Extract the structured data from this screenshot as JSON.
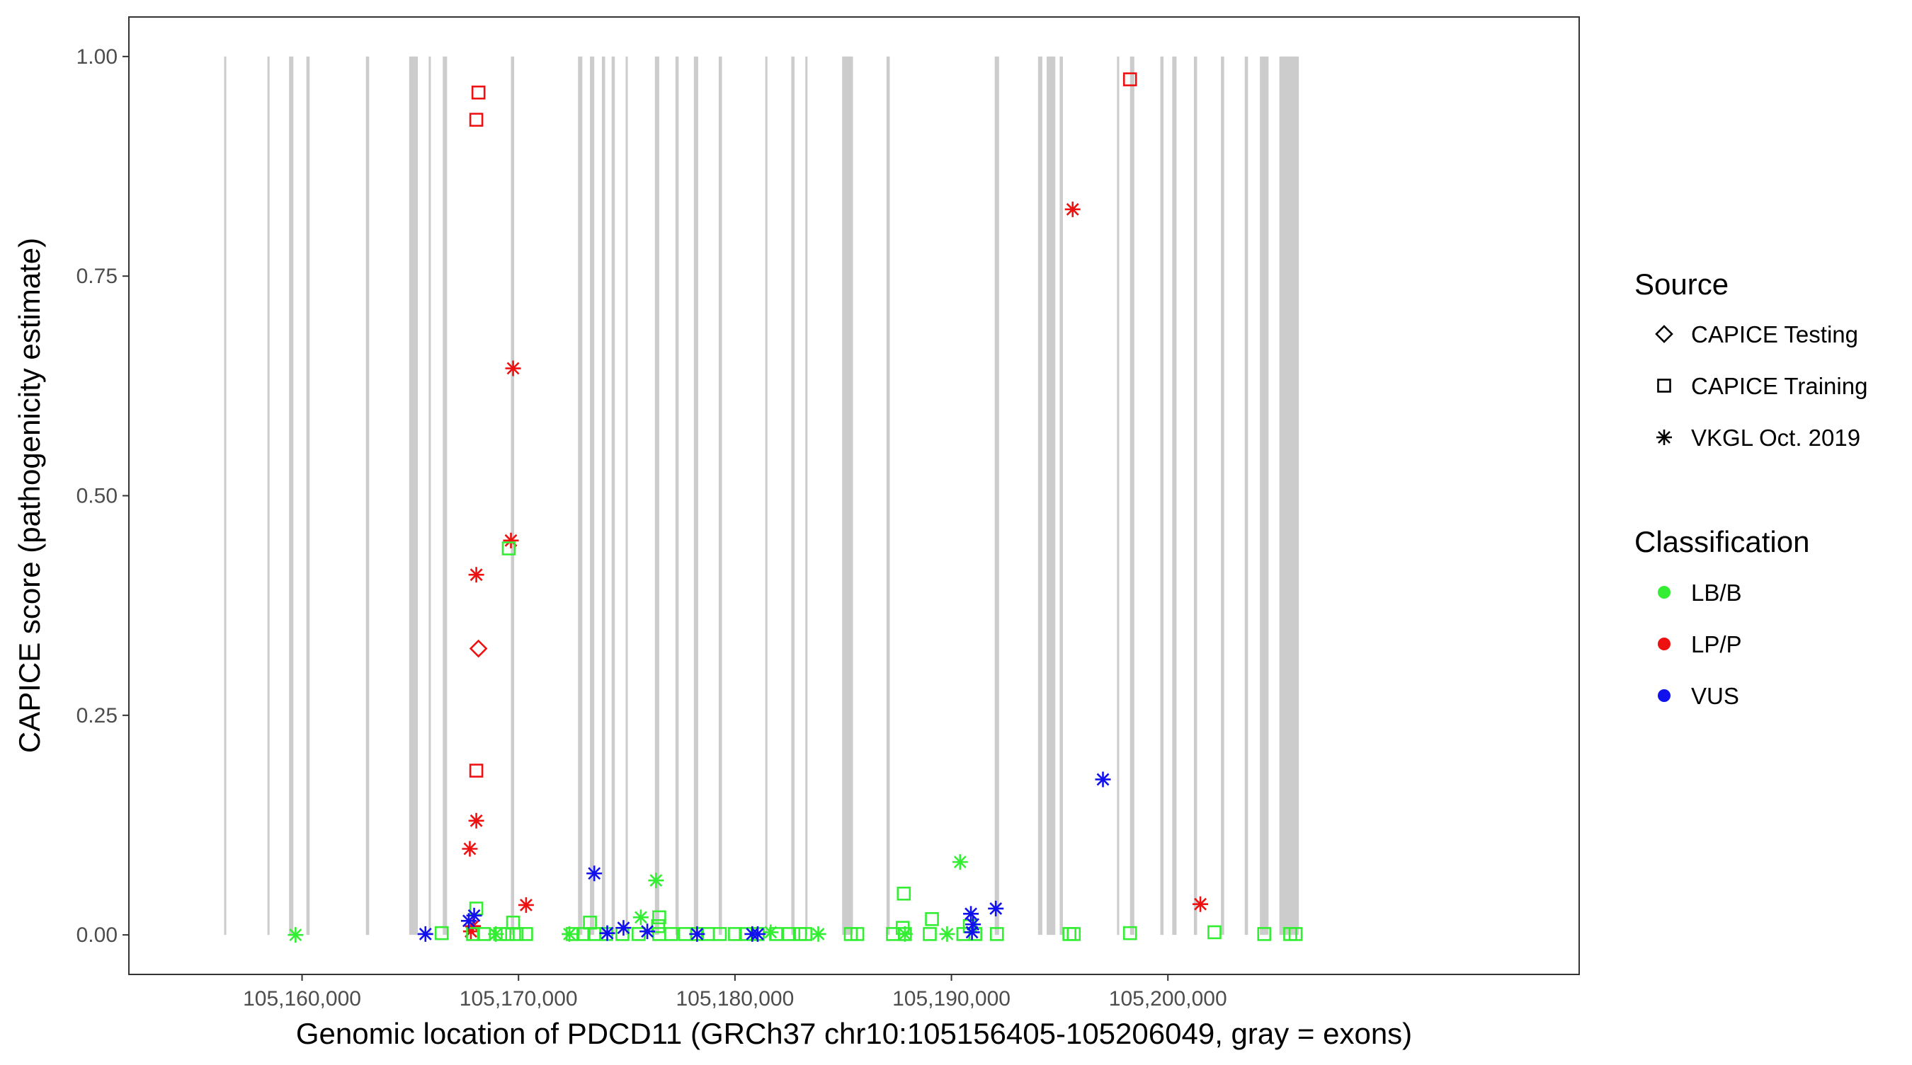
{
  "chart_data": {
    "type": "scatter",
    "xlabel": "Genomic location of PDCD11 (GRCh37 chr10:105156405-105206049, gray = exons)",
    "ylabel": "CAPICE score (pathogenicity estimate)",
    "xlim": [
      105152000,
      105219000
    ],
    "ylim": [
      -0.045,
      1.045
    ],
    "x_ticks": [
      105160000,
      105170000,
      105180000,
      105190000,
      105200000
    ],
    "x_tick_labels": [
      "105,160,000",
      "105,170,000",
      "105,180,000",
      "105,190,000",
      "105,200,000"
    ],
    "y_ticks": [
      0,
      0.25,
      0.5,
      0.75,
      1.0
    ],
    "y_tick_labels": [
      "0.00",
      "0.25",
      "0.50",
      "0.75",
      "1.00"
    ],
    "grid": false,
    "exon_color": "#cccccc",
    "exons": [
      [
        105156400,
        105156500
      ],
      [
        105158400,
        105158500
      ],
      [
        105159400,
        105159600
      ],
      [
        105160200,
        105160350
      ],
      [
        105162950,
        105163100
      ],
      [
        105164950,
        105165350
      ],
      [
        105165850,
        105165950
      ],
      [
        105166500,
        105166700
      ],
      [
        105169650,
        105169800
      ],
      [
        105172750,
        105172950
      ],
      [
        105173300,
        105173500
      ],
      [
        105173850,
        105174000
      ],
      [
        105174300,
        105174450
      ],
      [
        105174950,
        105175050
      ],
      [
        105176300,
        105176500
      ],
      [
        105177250,
        105177400
      ],
      [
        105178100,
        105178300
      ],
      [
        105179250,
        105179400
      ],
      [
        105181400,
        105181500
      ],
      [
        105182600,
        105182750
      ],
      [
        105183250,
        105183350
      ],
      [
        105184950,
        105185450
      ],
      [
        105187000,
        105187150
      ],
      [
        105192000,
        105192200
      ],
      [
        105194000,
        105194200
      ],
      [
        105194400,
        105194800
      ],
      [
        105195000,
        105195150
      ],
      [
        105197650,
        105197750
      ],
      [
        105198250,
        105198450
      ],
      [
        105199650,
        105199800
      ],
      [
        105200200,
        105200400
      ],
      [
        105201200,
        105201350
      ],
      [
        105202450,
        105202600
      ],
      [
        105203550,
        105203700
      ],
      [
        105204250,
        105204650
      ],
      [
        105205150,
        105206050
      ]
    ],
    "legend": {
      "position": "right",
      "source_title": "Source",
      "source_entries": [
        {
          "label": "CAPICE Testing",
          "shape": "diamond"
        },
        {
          "label": "CAPICE Training",
          "shape": "square"
        },
        {
          "label": "VKGL Oct. 2019",
          "shape": "asterisk"
        }
      ],
      "class_title": "Classification",
      "class_entries": [
        {
          "label": "LB/B",
          "color": "#33ee33"
        },
        {
          "label": "LP/P",
          "color": "#ee1111"
        },
        {
          "label": "VUS",
          "color": "#1111ee"
        }
      ]
    },
    "series": [
      {
        "source": "CAPICE Training",
        "classification": "LP/P",
        "shape": "square",
        "color": "#ee1111",
        "x": [
          105168150,
          105168050,
          105168050,
          105198250
        ],
        "y": [
          0.959,
          0.928,
          0.187,
          0.974
        ]
      },
      {
        "source": "CAPICE Testing",
        "classification": "LP/P",
        "shape": "diamond",
        "color": "#ee1111",
        "x": [
          105168150
        ],
        "y": [
          0.326
        ]
      },
      {
        "source": "VKGL Oct. 2019",
        "classification": "LP/P",
        "shape": "asterisk",
        "color": "#ee1111",
        "x": [
          105169750,
          105169650,
          105168050,
          105168050,
          105167750,
          105170350,
          105195600,
          105201500,
          105167900,
          105167800
        ],
        "y": [
          0.645,
          0.449,
          0.41,
          0.13,
          0.098,
          0.034,
          0.826,
          0.035,
          0.01,
          0.004
        ]
      },
      {
        "source": "CAPICE Training",
        "classification": "LB/B",
        "shape": "square",
        "color": "#33ee33",
        "x": [
          105169550,
          105168050,
          105187800,
          105189100,
          105173300,
          105176500,
          105176450,
          105169750,
          105187750,
          105190850,
          105166450,
          105167900,
          105168400,
          105169150,
          105169500,
          105169900,
          105170350,
          105172500,
          105173000,
          105173500,
          105174050,
          105174800,
          105175550,
          105176500,
          105177050,
          105177700,
          105178250,
          105178750,
          105179300,
          105180000,
          105180500,
          105181050,
          105181900,
          105182500,
          105183000,
          105183250,
          105185350,
          105185650,
          105187300,
          105187850,
          105189000,
          105190550,
          105191100,
          105192100,
          105195450,
          105195650,
          105198250,
          105202150,
          105204450,
          105205650,
          105205900
        ],
        "y": [
          0.44,
          0.03,
          0.047,
          0.018,
          0.014,
          0.02,
          0.01,
          0.014,
          0.008,
          0.01,
          0.002,
          0.001,
          0.001,
          0.001,
          0.001,
          0.001,
          0.001,
          0.001,
          0.001,
          0.001,
          0.001,
          0.001,
          0.001,
          0.001,
          0.001,
          0.001,
          0.001,
          0.001,
          0.001,
          0.001,
          0.001,
          0.001,
          0.001,
          0.001,
          0.001,
          0.001,
          0.001,
          0.001,
          0.001,
          0.001,
          0.001,
          0.001,
          0.001,
          0.001,
          0.001,
          0.001,
          0.002,
          0.003,
          0.001,
          0.001,
          0.001
        ]
      },
      {
        "source": "VKGL Oct. 2019",
        "classification": "LB/B",
        "shape": "asterisk",
        "color": "#33ee33",
        "x": [
          105159700,
          105176350,
          105190400,
          105175650,
          105168950,
          105172350,
          105181650,
          105183850,
          105187850,
          105189800
        ],
        "y": [
          0.0,
          0.062,
          0.083,
          0.02,
          0.001,
          0.001,
          0.003,
          0.001,
          0.001,
          0.001
        ]
      },
      {
        "source": "VKGL Oct. 2019",
        "classification": "VUS",
        "shape": "asterisk",
        "color": "#1111ee",
        "x": [
          105173500,
          105197000,
          105192050,
          105190900,
          105191000,
          105167950,
          105167700,
          105165700,
          105174100,
          105174850,
          105175950,
          105178250,
          105180800,
          105181050,
          105190950
        ],
        "y": [
          0.07,
          0.177,
          0.03,
          0.024,
          0.012,
          0.022,
          0.016,
          0.001,
          0.002,
          0.008,
          0.004,
          0.001,
          0.001,
          0.001,
          0.003
        ]
      }
    ]
  }
}
